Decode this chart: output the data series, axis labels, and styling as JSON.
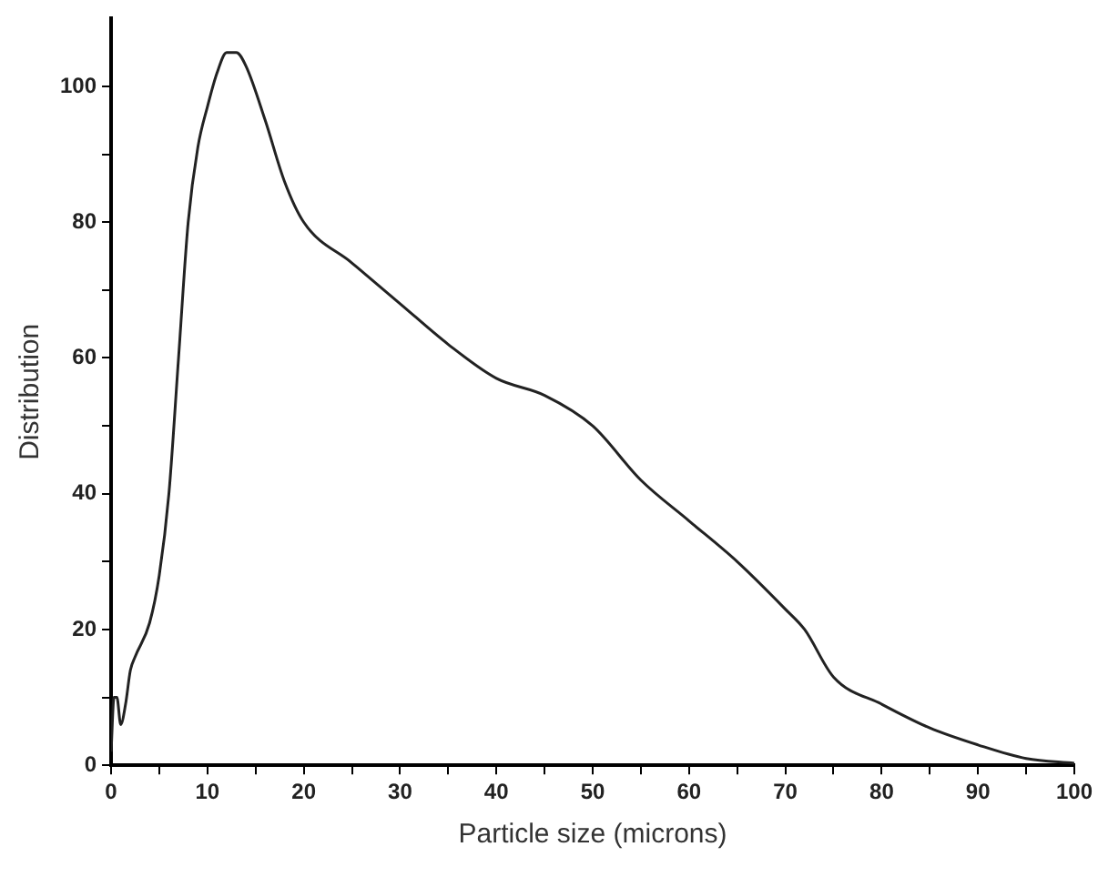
{
  "chart_data": {
    "type": "line",
    "xlabel": "Particle size (microns)",
    "ylabel": "Distribution",
    "color": "#222222",
    "marker": "none",
    "line_style": "solid",
    "grid": false,
    "legend": false,
    "x": [
      0,
      0.3,
      0.6,
      1,
      1.5,
      2,
      2.5,
      4,
      5,
      6,
      7,
      8,
      9,
      10,
      11,
      12,
      13,
      14,
      16,
      18,
      20,
      25,
      30,
      35,
      40,
      45,
      50,
      55,
      60,
      65,
      70,
      72,
      75,
      80,
      85,
      90,
      95,
      100
    ],
    "values": [
      2,
      10,
      10,
      6,
      9,
      14,
      16,
      21,
      28,
      40,
      60,
      80,
      91,
      97,
      102,
      105,
      105,
      103,
      95,
      86,
      80,
      74,
      68,
      62,
      57,
      54.5,
      50,
      42,
      36,
      30,
      23,
      20,
      13,
      9,
      5.5,
      3,
      1,
      0.3
    ],
    "xlim": [
      0,
      100
    ],
    "xticks": [
      0,
      {
        "value": 5,
        "label": null
      },
      10,
      {
        "value": 15,
        "label": null
      },
      20,
      {
        "value": 25,
        "label": null
      },
      30,
      {
        "value": 35,
        "label": null
      },
      40,
      {
        "value": 45,
        "label": null
      },
      50,
      {
        "value": 55,
        "label": null
      },
      60,
      {
        "value": 65,
        "label": null
      },
      70,
      {
        "value": 75,
        "label": null
      },
      80,
      {
        "value": 85,
        "label": null
      },
      90,
      {
        "value": 95,
        "label": null
      },
      100
    ],
    "ylim": [
      0,
      110
    ],
    "yticks": [
      0,
      {
        "value": 10,
        "label": null
      },
      20,
      {
        "value": 30,
        "label": null
      },
      40,
      {
        "value": 50,
        "label": null
      },
      60,
      {
        "value": 70,
        "label": null
      },
      80,
      {
        "value": 90,
        "label": null
      },
      100
    ]
  }
}
